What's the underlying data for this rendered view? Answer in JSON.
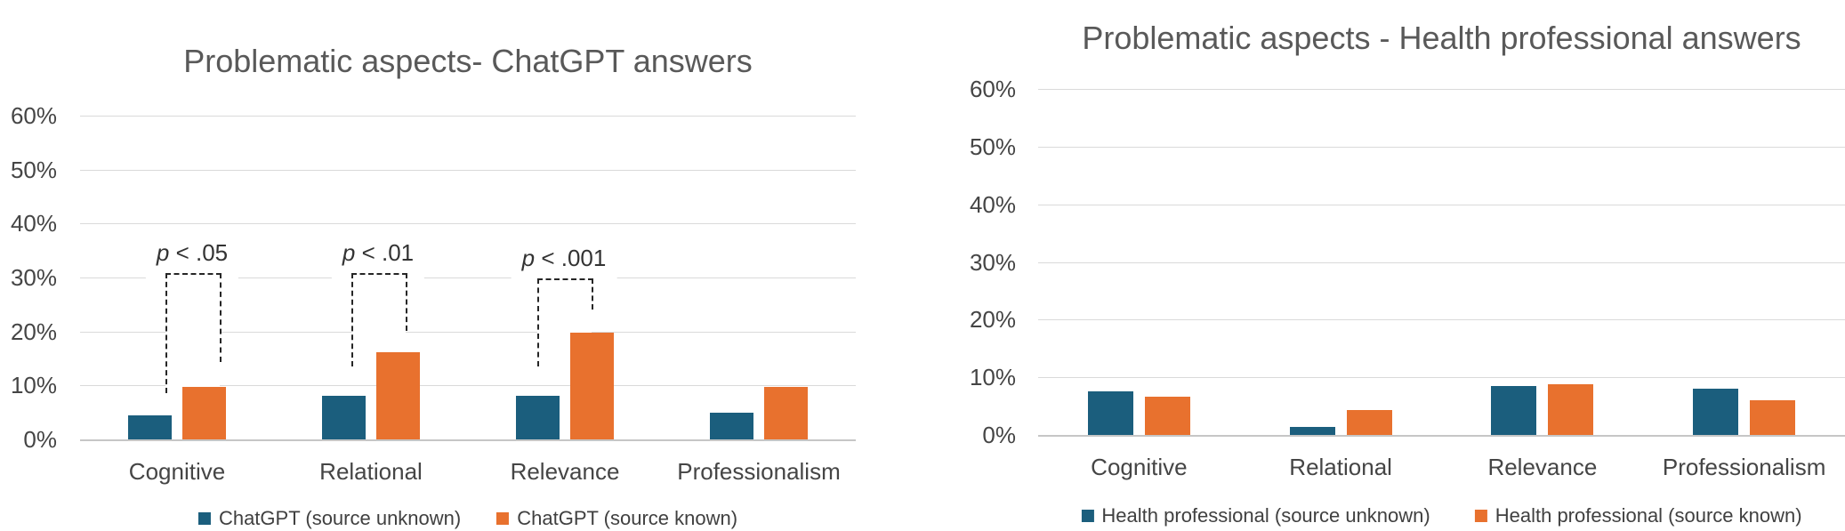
{
  "chart_data": [
    {
      "type": "bar",
      "title": "Problematic aspects- ChatGPT answers",
      "categories": [
        "Cognitive",
        "Relational",
        "Relevance",
        "Professionalism"
      ],
      "series": [
        {
          "name": "ChatGPT (source unknown)",
          "color": "#1B5E7D",
          "values": [
            4.4,
            8.0,
            8.0,
            5.0
          ]
        },
        {
          "name": "ChatGPT (source known)",
          "color": "#E8712E",
          "values": [
            9.7,
            16.1,
            19.8,
            9.7
          ]
        }
      ],
      "y_tick_labels": [
        "0%",
        "10%",
        "20%",
        "30%",
        "40%",
        "50%",
        "60%"
      ],
      "ylim": [
        0,
        60
      ],
      "grid": true,
      "legend_position": "bottom",
      "annotations": [
        {
          "label": "p < .05",
          "category": "Cognitive",
          "bracket_top_pct": 30.8,
          "left_leg_bottom_pct": 8.6,
          "right_leg_bottom_pct": 14.3
        },
        {
          "label": "p < .01",
          "category": "Relational",
          "bracket_top_pct": 30.8,
          "left_leg_bottom_pct": 13.5,
          "right_leg_bottom_pct": 20.1
        },
        {
          "label": "p < .001",
          "category": "Relevance",
          "bracket_top_pct": 29.8,
          "left_leg_bottom_pct": 13.5,
          "right_leg_bottom_pct": 24.1
        }
      ]
    },
    {
      "type": "bar",
      "title": "Problematic aspects - Health professional answers",
      "categories": [
        "Cognitive",
        "Relational",
        "Relevance",
        "Professionalism"
      ],
      "series": [
        {
          "name": "Health professional (source unknown)",
          "color": "#1B5E7D",
          "values": [
            7.6,
            1.4,
            8.5,
            8.0
          ]
        },
        {
          "name": "Health professional (source known)",
          "color": "#E8712E",
          "values": [
            6.6,
            4.3,
            8.8,
            6.0
          ]
        }
      ],
      "y_tick_labels": [
        "0%",
        "10%",
        "20%",
        "30%",
        "40%",
        "50%",
        "60%"
      ],
      "ylim": [
        0,
        60
      ],
      "grid": true,
      "legend_position": "bottom",
      "annotations": []
    }
  ],
  "styles": {
    "bar_blue": "#1B5E7D",
    "bar_orange": "#E8712E",
    "gridline": "#DADADA",
    "zero_line": "#C6C6C6",
    "axis_text": "#454545",
    "title_text": "#595959",
    "legend_text": "#404040",
    "annotation_line": "#262626",
    "background": "#FFFFFF"
  }
}
